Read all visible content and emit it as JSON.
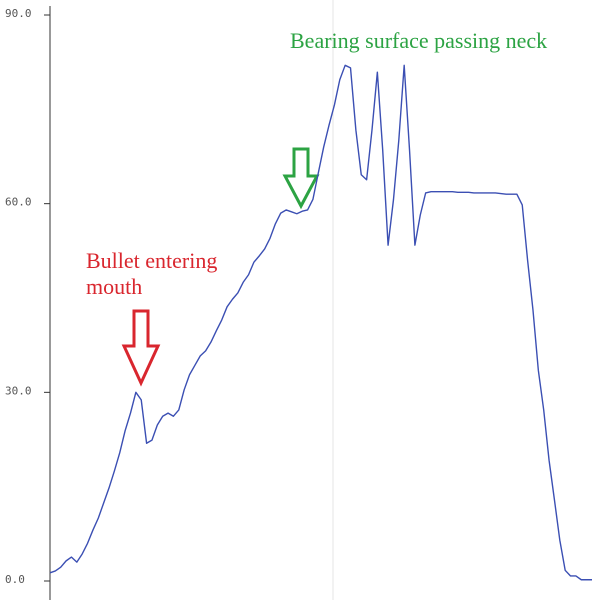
{
  "chart_data": {
    "type": "line",
    "ylim": [
      0,
      90
    ],
    "yticks": [
      {
        "value": 0,
        "label": "0.0"
      },
      {
        "value": 30,
        "label": "30.0"
      },
      {
        "value": 60,
        "label": "60.0"
      },
      {
        "value": 90,
        "label": "90.0"
      }
    ],
    "color": "#3b4fb3",
    "values": [
      1.3,
      1.6,
      2.2,
      3.2,
      3.8,
      3.0,
      4.3,
      6.0,
      8.1,
      10,
      12.4,
      14.8,
      17.5,
      20.4,
      23.9,
      26.7,
      30,
      28.8,
      21.9,
      22.4,
      24.8,
      26.2,
      26.7,
      26.2,
      27.2,
      30.4,
      32.8,
      34.3,
      35.8,
      36.6,
      38,
      39.8,
      41.5,
      43.6,
      44.8,
      45.8,
      47.5,
      48.7,
      50.7,
      51.7,
      52.8,
      54.5,
      56.8,
      58.5,
      59,
      58.7,
      58.4,
      58.8,
      59,
      60.7,
      64.9,
      69,
      72.5,
      75.7,
      79.7,
      82,
      81.6,
      71.7,
      64.6,
      63.8,
      71.7,
      80.9,
      68.5,
      53.4,
      60.6,
      70.1,
      82,
      68.5,
      53.4,
      58.2,
      61.7,
      61.9,
      61.9,
      61.9,
      61.9,
      61.9,
      61.8,
      61.8,
      61.8,
      61.7,
      61.7,
      61.7,
      61.7,
      61.7,
      61.6,
      61.5,
      61.5,
      61.5,
      59.8,
      51,
      43.1,
      33.5,
      27.2,
      19.2,
      12.9,
      6.5,
      1.7,
      0.8,
      0.8,
      0.2,
      0.2,
      0.2
    ],
    "annotations": [
      {
        "text": "Bullet entering mouth",
        "color": "#d9262e"
      },
      {
        "text": "Bearing surface passing neck",
        "color": "#2ca343"
      }
    ]
  }
}
